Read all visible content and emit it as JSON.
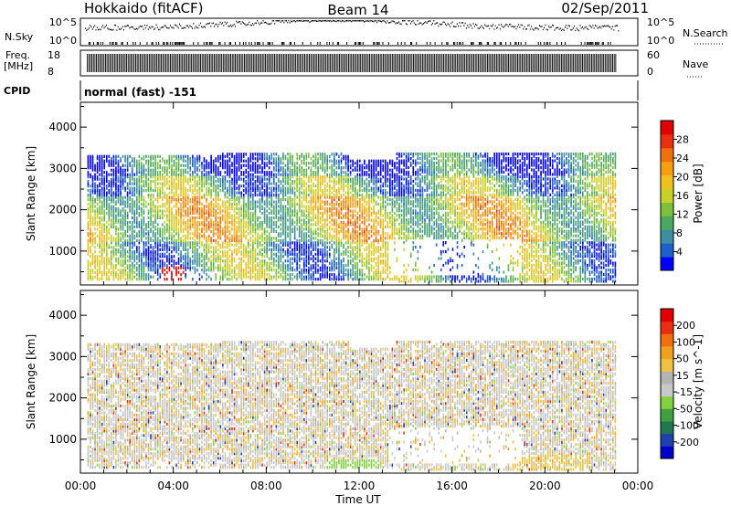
{
  "header": {
    "site": "Hokkaido (fitACF)",
    "beam": "Beam 14",
    "date": "02/Sep/2011"
  },
  "top_panels": {
    "nsky_label": "N.Sky",
    "nsky_ticks": [
      "10^5",
      "10^0"
    ],
    "nsearch_label": "N.Search",
    "nsearch_ticks": [
      "10^5",
      "10^0"
    ],
    "freq_label_1": "Freq.",
    "freq_label_2": "[MHz]",
    "freq_ticks": [
      "18",
      "8"
    ],
    "nave_label": "Nave",
    "nave_ticks": [
      "60",
      "0"
    ],
    "cpid_label": "CPID",
    "cpid_value": "normal (fast) -151"
  },
  "chart_data": [
    {
      "type": "heatmap",
      "name": "power",
      "title": "",
      "xlabel": "",
      "ylabel": "Slant Range [km]",
      "xlim": [
        0,
        24
      ],
      "ylim": [
        180,
        4600
      ],
      "yticks": [
        "1000",
        "2000",
        "3000",
        "4000"
      ],
      "colorbar": {
        "label": "Power [dB]",
        "ticks": [
          "4",
          "8",
          "12",
          "16",
          "20",
          "24",
          "28"
        ],
        "range": [
          0,
          32
        ],
        "colors": [
          "#0000ff",
          "#1e5fcc",
          "#3c8fa0",
          "#4aa860",
          "#7cc03c",
          "#c8d028",
          "#f0c020",
          "#f5a010",
          "#f07010",
          "#e83010",
          "#e00000"
        ]
      }
    },
    {
      "type": "heatmap",
      "name": "velocity",
      "title": "",
      "xlabel": "Time UT",
      "ylabel": "Slant Range [km]",
      "xlim": [
        0,
        24
      ],
      "ylim": [
        180,
        4600
      ],
      "xticks": [
        "00:00",
        "04:00",
        "08:00",
        "12:00",
        "16:00",
        "20:00",
        "00:00"
      ],
      "yticks": [
        "1000",
        "2000",
        "3000",
        "4000"
      ],
      "colorbar": {
        "label": "Velocity [m s^-1]",
        "ticks": [
          "200",
          "100",
          "50",
          "15",
          "-15",
          "-50",
          "-100",
          "-200"
        ],
        "colors": [
          "#0000c8",
          "#2040b0",
          "#207850",
          "#40a040",
          "#80d040",
          "#c8c8c8",
          "#b4b4b4",
          "#f0c040",
          "#f0a020",
          "#f07010",
          "#e83010",
          "#e00000"
        ]
      }
    }
  ]
}
